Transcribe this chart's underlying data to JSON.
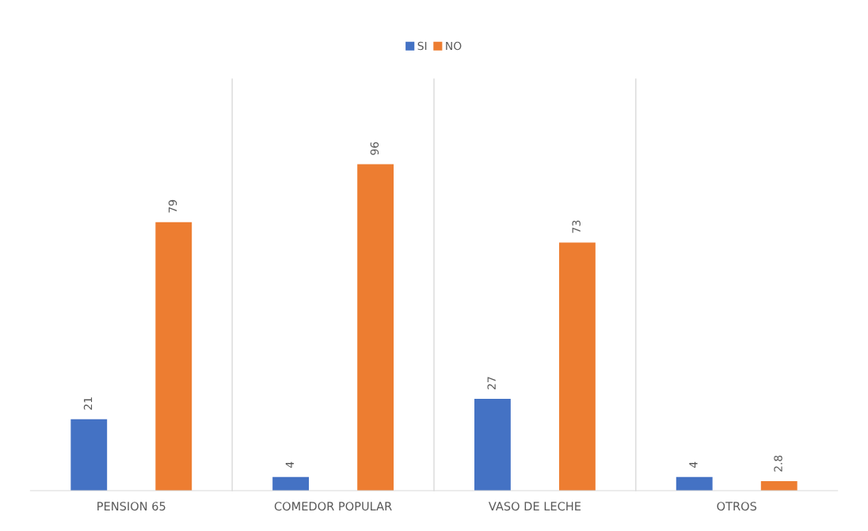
{
  "chart_data": {
    "type": "bar",
    "categories": [
      "PENSION 65",
      "COMEDOR POPULAR",
      "VASO DE LECHE",
      "OTROS"
    ],
    "series": [
      {
        "name": "SI",
        "color": "#4472c4",
        "values": [
          21,
          4,
          27,
          4
        ]
      },
      {
        "name": "NO",
        "color": "#ed7d31",
        "values": [
          79,
          96,
          73,
          2.8
        ]
      }
    ],
    "data_labels": true,
    "grid": "x",
    "legend": "top"
  }
}
